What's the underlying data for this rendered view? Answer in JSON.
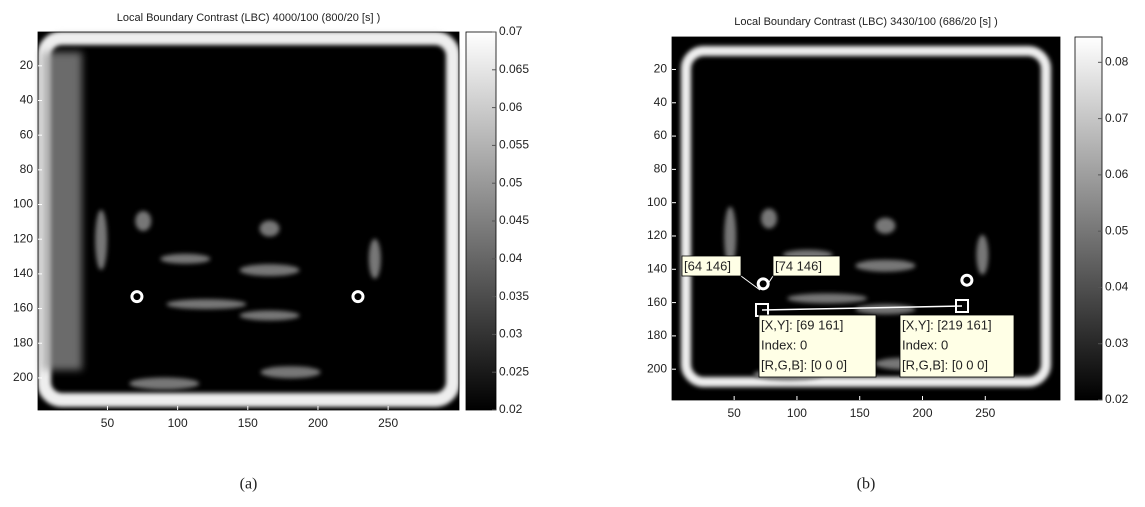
{
  "chart_data": [
    {
      "type": "image",
      "title": "Local Boundary Contrast (LBC) 4000/100 (800/20 [s] )",
      "xlim": [
        0.5,
        300.5
      ],
      "xticks": [
        50,
        100,
        150,
        200,
        250
      ],
      "ylim": [
        0.5,
        218.5
      ],
      "yticks": [
        20,
        40,
        60,
        80,
        100,
        120,
        140,
        160,
        180,
        200
      ],
      "clim": [
        0.02,
        0.07
      ],
      "cticks": [
        0.02,
        0.025,
        0.03,
        0.035,
        0.04,
        0.045,
        0.05,
        0.055,
        0.06,
        0.065,
        0.07
      ],
      "caption": "(a)"
    },
    {
      "type": "image",
      "title": "Local Boundary Contrast (LBC) 3430/100 (686/20 [s] )",
      "xlim": [
        0.5,
        309.5
      ],
      "xticks": [
        50,
        100,
        150,
        200,
        250
      ],
      "ylim": [
        0.5,
        218.5
      ],
      "yticks": [
        20,
        40,
        60,
        80,
        100,
        120,
        140,
        160,
        180,
        200
      ],
      "clim": [
        0.02,
        0.0845
      ],
      "cticks": [
        0.02,
        0.03,
        0.04,
        0.05,
        0.06,
        0.07,
        0.08
      ],
      "annotations": [
        "[64 146]",
        "[74 146]",
        "[X,Y]: [69 161]",
        "Index: 0",
        "[R,G,B]: [0 0 0]",
        "[X,Y]: [219 161]",
        "Index: 0",
        "[R,G,B]: [0 0 0]"
      ],
      "caption": "(b)"
    }
  ]
}
